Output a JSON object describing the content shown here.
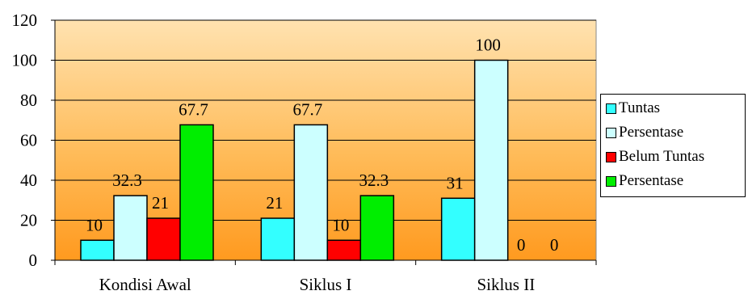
{
  "chart_data": {
    "type": "bar",
    "categories": [
      "Kondisi Awal",
      "Siklus I",
      "Siklus II"
    ],
    "series": [
      {
        "name": "Tuntas",
        "values": [
          10,
          21,
          31
        ],
        "color": "#33ffff"
      },
      {
        "name": "Persentase",
        "values": [
          32.3,
          67.7,
          100
        ],
        "color": "#ccffff"
      },
      {
        "name": "Belum Tuntas",
        "values": [
          21,
          10,
          0
        ],
        "color": "#ff0000"
      },
      {
        "name": "Persentase",
        "values": [
          67.7,
          32.3,
          0
        ],
        "color": "#00ee00"
      }
    ],
    "data_labels": [
      [
        "10",
        "21",
        "31"
      ],
      [
        "32.3",
        "67.7",
        "100"
      ],
      [
        "21",
        "10",
        "0"
      ],
      [
        "67.7",
        "32.3",
        "0"
      ]
    ],
    "y_ticks": [
      "0",
      "20",
      "40",
      "60",
      "80",
      "100",
      "120"
    ],
    "ylim": [
      0,
      120
    ],
    "legend_position": "right",
    "plot_background": "orange-gradient"
  }
}
